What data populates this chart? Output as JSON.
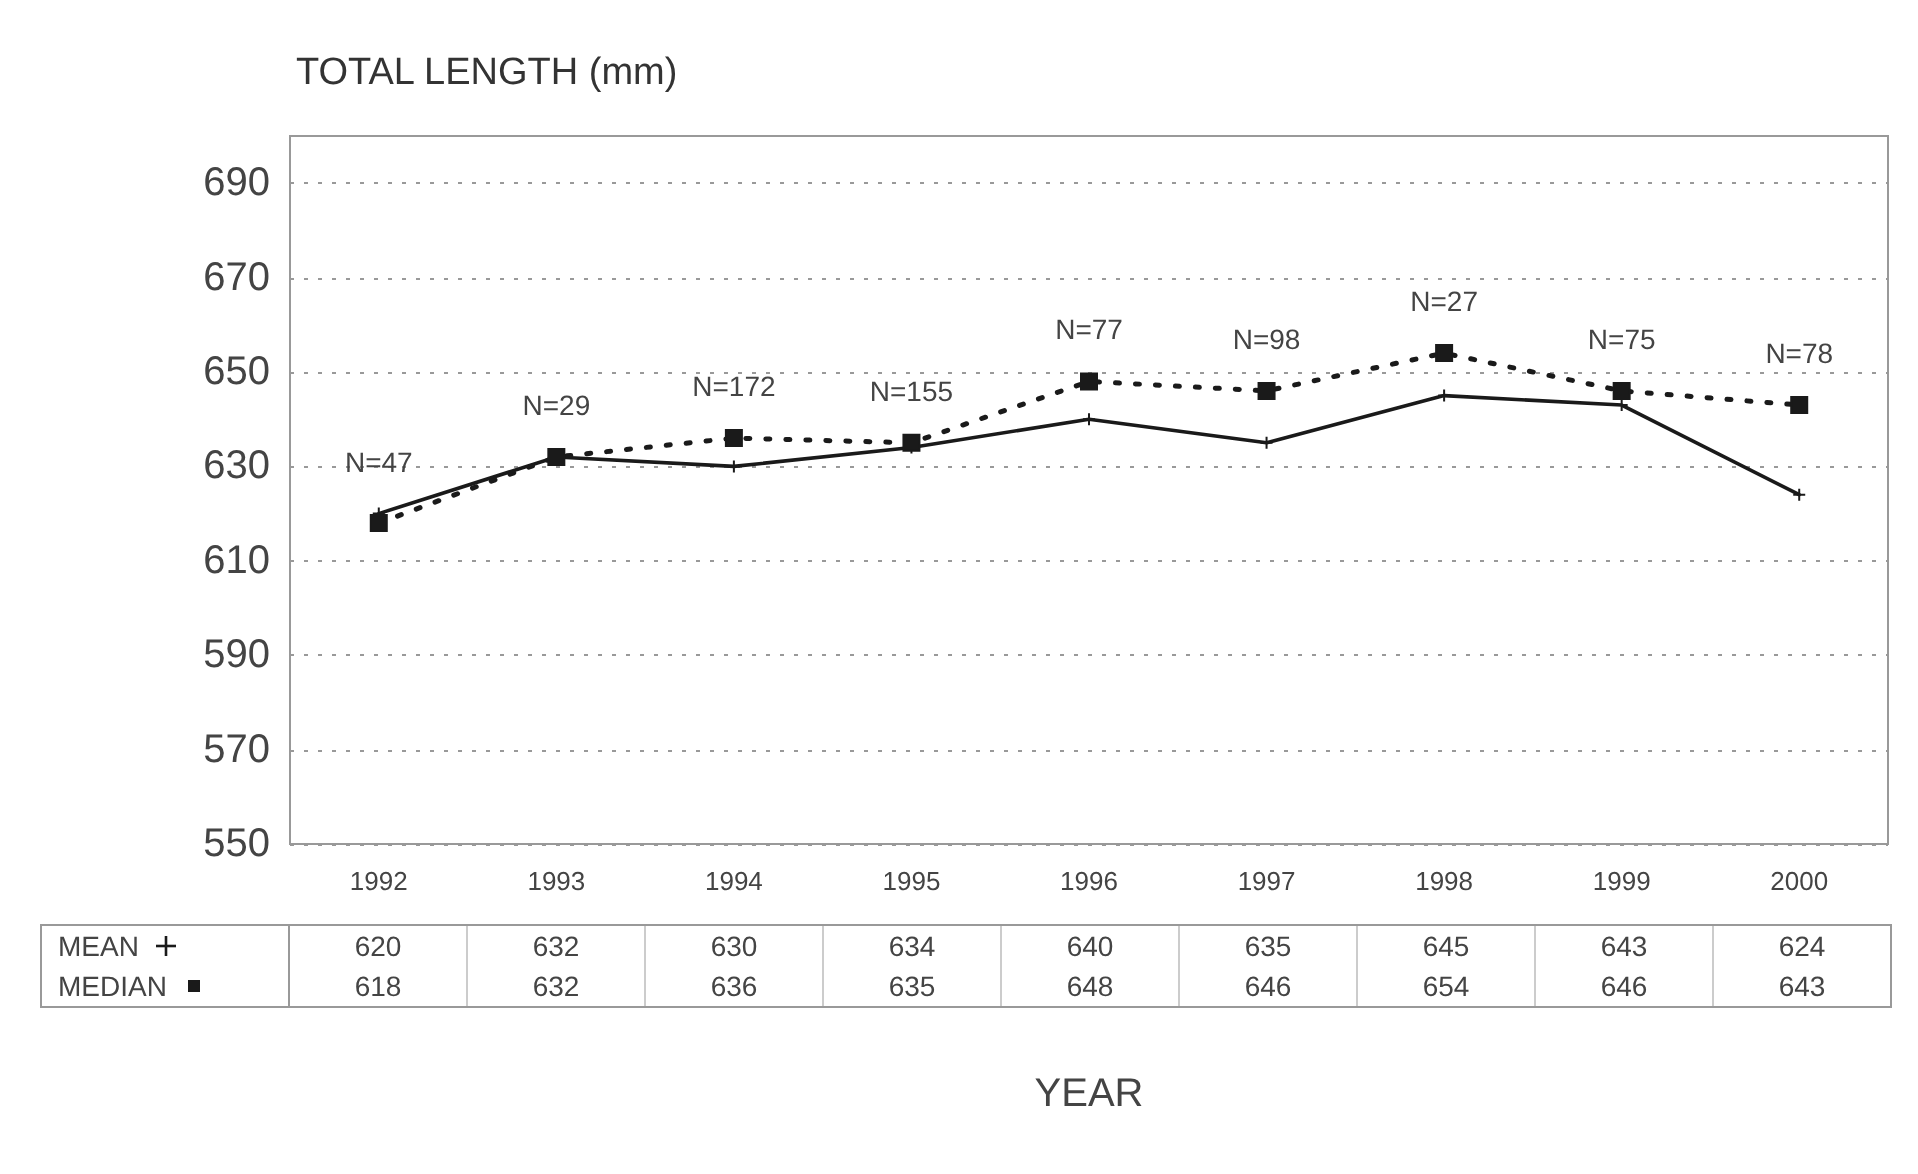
{
  "chart_data": {
    "type": "line",
    "ylabel": "TOTAL LENGTH (mm)",
    "xlabel": "YEAR",
    "categories": [
      "1992",
      "1993",
      "1994",
      "1995",
      "1996",
      "1997",
      "1998",
      "1999",
      "2000"
    ],
    "series": [
      {
        "name": "MEAN",
        "color": "#1a1a1a",
        "values": [
          620,
          632,
          630,
          634,
          640,
          635,
          645,
          643,
          624
        ],
        "marker": "cross",
        "line_style": "solid"
      },
      {
        "name": "MEDIAN",
        "color": "#1a1a1a",
        "values": [
          618,
          632,
          636,
          635,
          648,
          646,
          654,
          646,
          643
        ],
        "marker": "square",
        "line_style": "dotted"
      }
    ],
    "ylim": [
      550,
      700
    ],
    "yticks": [
      550,
      570,
      590,
      610,
      630,
      650,
      670,
      690
    ],
    "grid": "y",
    "legend": "bottom",
    "data_labels": true,
    "annotations": [
      "N=47",
      "N=29",
      "N=172",
      "N=155",
      "N=77",
      "N=98",
      "N=27",
      "N=75",
      "N=78"
    ]
  }
}
